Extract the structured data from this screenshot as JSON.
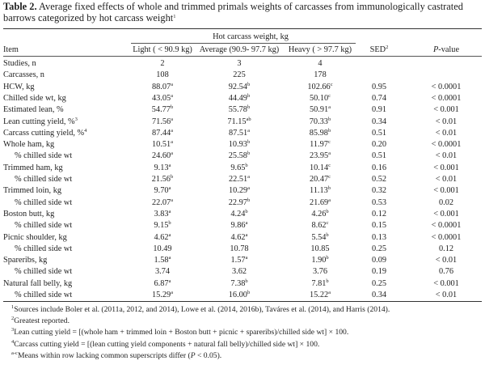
{
  "caption": {
    "label": "Table 2.",
    "text": "Average fixed effects of whole and trimmed primals weights of carcasses from immunologically castrated barrows categorized by hot carcass weight",
    "sup": "1"
  },
  "header": {
    "group": "Hot carcass weight, kg",
    "item": "Item",
    "light": "Light ( < 90.9 kg)",
    "average": "Average (90.9- 97.7 kg)",
    "heavy": "Heavy ( > 97.7 kg)",
    "sed": "SED",
    "sed_sup": "2",
    "pvalue_italic": "P",
    "pvalue_rest": "-value"
  },
  "rows": [
    {
      "item": "Studies, n",
      "indent": false,
      "light": "2",
      "light_sup": "",
      "avg": "3",
      "avg_sup": "",
      "heavy": "4",
      "heavy_sup": "",
      "sed": "",
      "p": ""
    },
    {
      "item": "Carcasses, n",
      "indent": false,
      "light": "108",
      "light_sup": "",
      "avg": "225",
      "avg_sup": "",
      "heavy": "178",
      "heavy_sup": "",
      "sed": "",
      "p": ""
    },
    {
      "item": "HCW, kg",
      "indent": false,
      "light": "88.07",
      "light_sup": "a",
      "avg": "92.54",
      "avg_sup": "b",
      "heavy": "102.66",
      "heavy_sup": "c",
      "sed": "0.95",
      "p": "< 0.0001"
    },
    {
      "item": "Chilled side wt, kg",
      "indent": false,
      "light": "43.05",
      "light_sup": "a",
      "avg": "44.49",
      "avg_sup": "b",
      "heavy": "50.10",
      "heavy_sup": "c",
      "sed": "0.74",
      "p": "< 0.0001"
    },
    {
      "item": "Estimated lean, %",
      "indent": false,
      "light": "54.77",
      "light_sup": "b",
      "avg": "55.78",
      "avg_sup": "b",
      "heavy": "50.91",
      "heavy_sup": "a",
      "sed": "0.91",
      "p": "< 0.001"
    },
    {
      "item": "Lean cutting yield, %",
      "item_sup": "3",
      "indent": false,
      "light": "71.56",
      "light_sup": "a",
      "avg": "71.15",
      "avg_sup": "ab",
      "heavy": "70.33",
      "heavy_sup": "b",
      "sed": "0.34",
      "p": "< 0.01"
    },
    {
      "item": "Carcass cutting yield, %",
      "item_sup": "4",
      "indent": false,
      "light": "87.44",
      "light_sup": "a",
      "avg": "87.51",
      "avg_sup": "a",
      "heavy": "85.98",
      "heavy_sup": "b",
      "sed": "0.51",
      "p": "< 0.01"
    },
    {
      "item": "Whole ham, kg",
      "indent": false,
      "light": "10.51",
      "light_sup": "a",
      "avg": "10.93",
      "avg_sup": "b",
      "heavy": "11.97",
      "heavy_sup": "c",
      "sed": "0.20",
      "p": "< 0.0001"
    },
    {
      "item": "% chilled side wt",
      "indent": true,
      "light": "24.60",
      "light_sup": "a",
      "avg": "25.58",
      "avg_sup": "b",
      "heavy": "23.95",
      "heavy_sup": "a",
      "sed": "0.51",
      "p": "< 0.01"
    },
    {
      "item": "Trimmed ham, kg",
      "indent": false,
      "light": "9.13",
      "light_sup": "a",
      "avg": "9.65",
      "avg_sup": "b",
      "heavy": "10.14",
      "heavy_sup": "c",
      "sed": "0.16",
      "p": "< 0.001"
    },
    {
      "item": "% chilled side wt",
      "indent": true,
      "light": "21.56",
      "light_sup": "b",
      "avg": "22.51",
      "avg_sup": "a",
      "heavy": "20.47",
      "heavy_sup": "c",
      "sed": "0.52",
      "p": "< 0.01"
    },
    {
      "item": "Trimmed loin, kg",
      "indent": false,
      "light": "9.70",
      "light_sup": "a",
      "avg": "10.29",
      "avg_sup": "a",
      "heavy": "11.13",
      "heavy_sup": "b",
      "sed": "0.32",
      "p": "< 0.001"
    },
    {
      "item": "% chilled side wt",
      "indent": true,
      "light": "22.07",
      "light_sup": "a",
      "avg": "22.97",
      "avg_sup": "b",
      "heavy": "21.69",
      "heavy_sup": "a",
      "sed": "0.53",
      "p": "0.02"
    },
    {
      "item": "Boston butt, kg",
      "indent": false,
      "light": "3.83",
      "light_sup": "a",
      "avg": "4.24",
      "avg_sup": "b",
      "heavy": "4.26",
      "heavy_sup": "b",
      "sed": "0.12",
      "p": "< 0.001"
    },
    {
      "item": "% chilled side wt",
      "indent": true,
      "light": "9.15",
      "light_sup": "b",
      "avg": "9.86",
      "avg_sup": "a",
      "heavy": "8.62",
      "heavy_sup": "c",
      "sed": "0.15",
      "p": "< 0.0001"
    },
    {
      "item": "Picnic shoulder, kg",
      "indent": false,
      "light": "4.62",
      "light_sup": "a",
      "avg": "4.62",
      "avg_sup": "a",
      "heavy": "5.54",
      "heavy_sup": "b",
      "sed": "0.13",
      "p": "< 0.0001"
    },
    {
      "item": "% chilled side wt",
      "indent": true,
      "light": "10.49",
      "light_sup": "",
      "avg": "10.78",
      "avg_sup": "",
      "heavy": "10.85",
      "heavy_sup": "",
      "sed": "0.25",
      "p": "0.12"
    },
    {
      "item": "Spareribs, kg",
      "indent": false,
      "light": "1.58",
      "light_sup": "a",
      "avg": "1.57",
      "avg_sup": "a",
      "heavy": "1.90",
      "heavy_sup": "b",
      "sed": "0.09",
      "p": "< 0.01"
    },
    {
      "item": "% chilled side wt",
      "indent": true,
      "light": "3.74",
      "light_sup": "",
      "avg": "3.62",
      "avg_sup": "",
      "heavy": "3.76",
      "heavy_sup": "",
      "sed": "0.19",
      "p": "0.76"
    },
    {
      "item": "Natural fall belly, kg",
      "indent": false,
      "light": "6.87",
      "light_sup": "a",
      "avg": "7.38",
      "avg_sup": "b",
      "heavy": "7.81",
      "heavy_sup": "b",
      "sed": "0.25",
      "p": "< 0.001"
    },
    {
      "item": "% chilled side wt",
      "indent": true,
      "light": "15.29",
      "light_sup": "a",
      "avg": "16.00",
      "avg_sup": "b",
      "heavy": "15.22",
      "heavy_sup": "a",
      "sed": "0.34",
      "p": "< 0.01"
    }
  ],
  "footnotes": [
    {
      "mark": "1",
      "text": "Sources include Boler et al. (2011a, 2012, and 2014), Lowe et al. (2014, 2016b), Taváres et al. (2014), and Harris (2014)."
    },
    {
      "mark": "2",
      "text": "Greatest reported."
    },
    {
      "mark": "3",
      "text": "Lean cutting yield = [(whole ham + trimmed loin + Boston butt + picnic + spareribs)/chilled side wt] × 100."
    },
    {
      "mark": "4",
      "text": "Carcass cutting yield = [(lean cutting yield components + natural fall belly)/chilled side wt] × 100."
    },
    {
      "mark": "a-c",
      "text": "Means within row lacking common superscripts differ (",
      "italic": "P",
      "text2": " < 0.05)."
    }
  ]
}
